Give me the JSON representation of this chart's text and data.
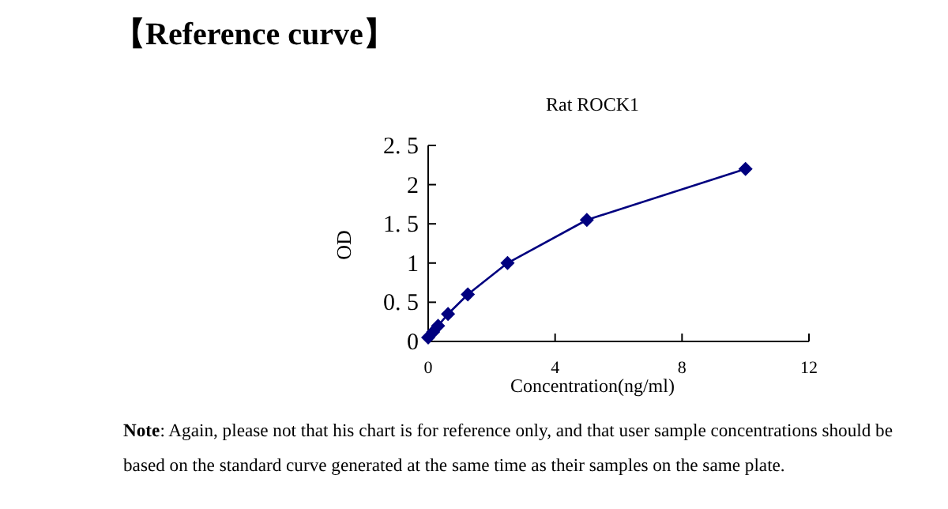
{
  "chart_data": {
    "type": "line",
    "title": "【Reference curve】",
    "subtitle": "Rat ROCK1",
    "xlabel": "Concentration(ng/ml)",
    "ylabel": "OD",
    "x": [
      0,
      0.156,
      0.312,
      0.625,
      1.25,
      2.5,
      5,
      10
    ],
    "series": [
      {
        "color": "#00007f",
        "values": [
          0.05,
          0.12,
          0.2,
          0.35,
          0.6,
          1.0,
          1.55,
          2.2
        ]
      }
    ],
    "xlim": [
      0,
      12
    ],
    "ylim": [
      0,
      2.5
    ],
    "xticks": [
      0,
      4,
      8,
      12
    ],
    "yticks": [
      0,
      {
        "value": 0.5,
        "label": "0. 5"
      },
      1,
      {
        "value": 1.5,
        "label": "1. 5"
      },
      2,
      {
        "value": 2.5,
        "label": "2. 5"
      }
    ],
    "marker": "diamond",
    "line_style": "solid",
    "grid": false,
    "annotations": [
      "Note: Again, please not that his chart is for reference only, and that user sample concentrations should be based on the standard curve generated at the same time as their samples on the same plate."
    ]
  }
}
